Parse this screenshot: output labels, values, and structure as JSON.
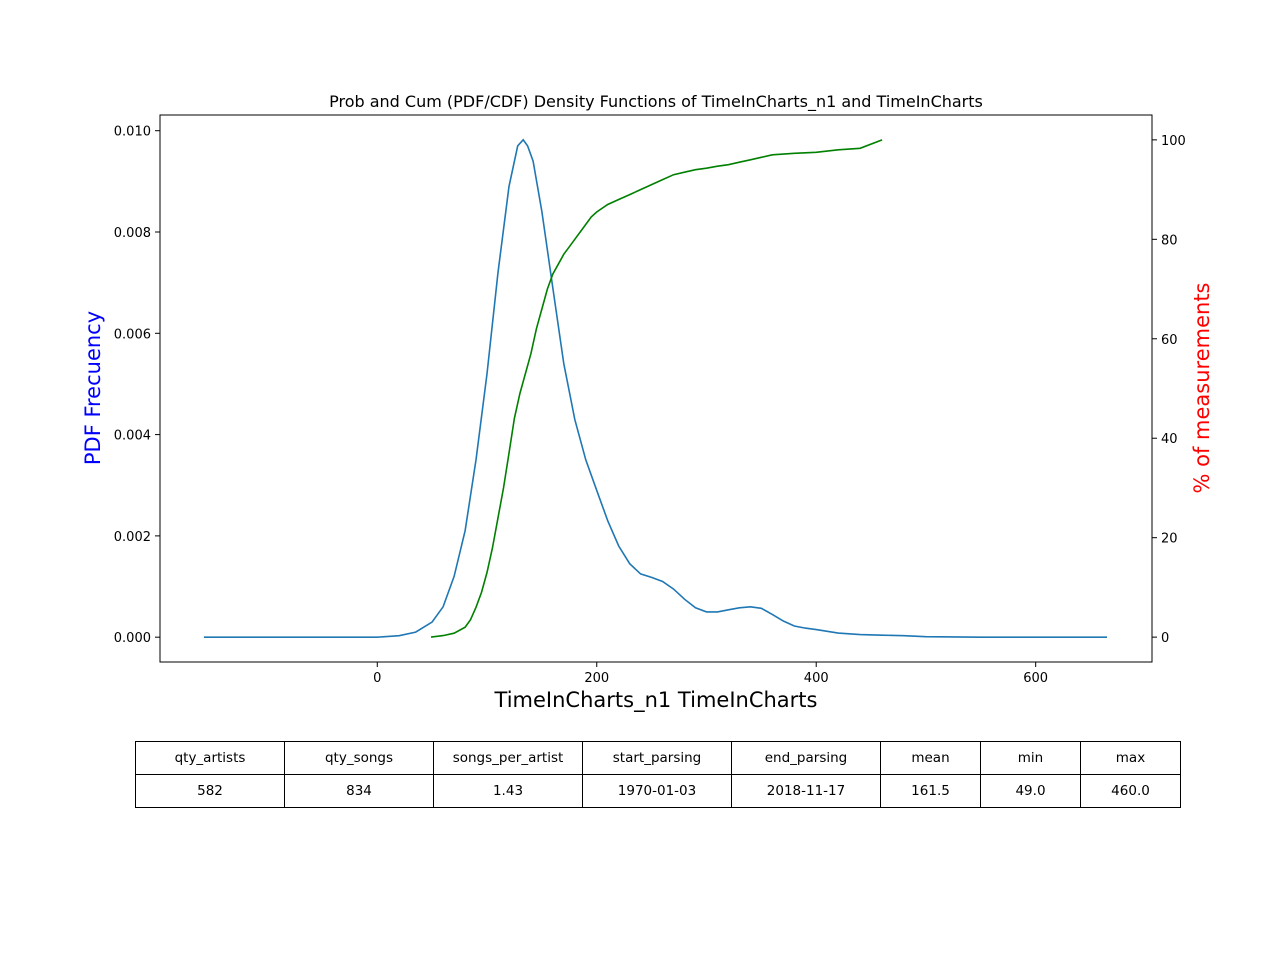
{
  "colors": {
    "pdf_line": "#1f77b4",
    "cdf_line": "#008000",
    "pdf_label": "#0000ff",
    "cdf_label": "#ff0000"
  },
  "chart_data": {
    "type": "line",
    "title": "Prob and Cum (PDF/CDF) Density Functions of TimeInCharts_n1 and TimeInCharts",
    "xlabel": "TimeInCharts_n1 TimeInCharts",
    "ylabel": "PDF Frecuency",
    "ylabel_right": "% of measurements",
    "xlim": [
      -198,
      706
    ],
    "ylim": [
      -0.00049,
      0.01031
    ],
    "ylim_right": [
      -5,
      105
    ],
    "x_ticks": [
      0,
      200,
      400,
      600
    ],
    "y_ticks": [
      0.0,
      0.002,
      0.004,
      0.006,
      0.008,
      0.01
    ],
    "y_tick_labels": [
      "0.000",
      "0.002",
      "0.004",
      "0.006",
      "0.008",
      "0.010"
    ],
    "y_right_ticks": [
      0,
      20,
      40,
      60,
      80,
      100
    ],
    "grid": false,
    "series": [
      {
        "axis": "left",
        "x": [
          -158,
          -100,
          0,
          20,
          35,
          50,
          60,
          70,
          80,
          90,
          100,
          110,
          120,
          128,
          133,
          137,
          142,
          150,
          160,
          170,
          180,
          190,
          200,
          210,
          220,
          230,
          240,
          250,
          260,
          270,
          280,
          290,
          300,
          310,
          320,
          330,
          340,
          350,
          360,
          370,
          380,
          390,
          400,
          420,
          440,
          460,
          480,
          500,
          550,
          600,
          665
        ],
        "values": [
          0.0,
          0.0,
          0.0,
          3e-05,
          0.0001,
          0.0003,
          0.0006,
          0.0012,
          0.0021,
          0.0035,
          0.0052,
          0.0072,
          0.0089,
          0.0097,
          0.00982,
          0.0097,
          0.0094,
          0.0084,
          0.0069,
          0.0054,
          0.0043,
          0.0035,
          0.0029,
          0.0023,
          0.0018,
          0.00145,
          0.00125,
          0.00118,
          0.0011,
          0.00095,
          0.00075,
          0.00058,
          0.0005,
          0.0005,
          0.00054,
          0.00058,
          0.0006,
          0.00057,
          0.00045,
          0.00032,
          0.00022,
          0.00018,
          0.00015,
          8e-05,
          5e-05,
          4e-05,
          3e-05,
          1e-05,
          0.0,
          0.0,
          0.0
        ]
      },
      {
        "axis": "right",
        "x": [
          49,
          60,
          70,
          80,
          85,
          90,
          95,
          100,
          105,
          110,
          115,
          120,
          125,
          130,
          135,
          140,
          145,
          150,
          155,
          160,
          165,
          170,
          175,
          180,
          185,
          190,
          195,
          200,
          210,
          220,
          230,
          240,
          250,
          260,
          270,
          280,
          290,
          300,
          310,
          320,
          330,
          340,
          350,
          360,
          380,
          400,
          420,
          440,
          460
        ],
        "values": [
          0,
          0.3,
          0.8,
          2,
          3.5,
          6,
          9,
          13,
          18,
          24,
          30,
          37,
          44,
          49,
          53,
          57,
          62,
          66,
          70,
          73,
          75,
          77,
          78.5,
          80,
          81.5,
          83,
          84.5,
          85.5,
          87,
          88,
          89,
          90,
          91,
          92,
          93,
          93.5,
          94,
          94.3,
          94.7,
          95,
          95.5,
          96,
          96.5,
          97,
          97.3,
          97.5,
          98,
          98.3,
          100
        ]
      }
    ]
  },
  "stats_table": {
    "headers": [
      "qty_artists",
      "qty_songs",
      "songs_per_artist",
      "start_parsing",
      "end_parsing",
      "mean",
      "min",
      "max"
    ],
    "values": [
      "582",
      "834",
      "1.43",
      "1970-01-03",
      "2018-11-17",
      "161.5",
      "49.0",
      "460.0"
    ]
  }
}
